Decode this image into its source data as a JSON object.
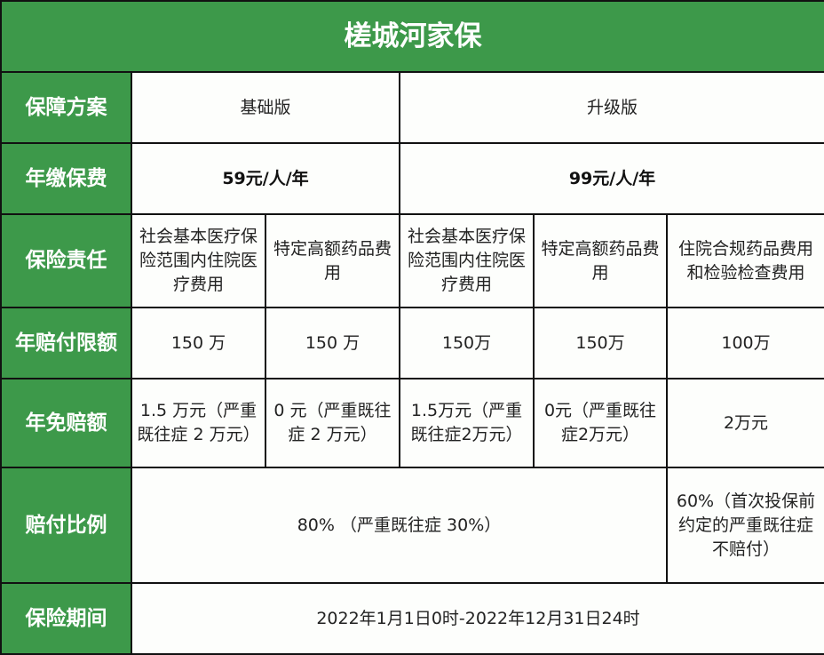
{
  "title": "槎城河家保",
  "colors": {
    "header_green": "#3d994a",
    "border": "#111111"
  },
  "rows": {
    "plan": {
      "label": "保障方案",
      "basic": "基础版",
      "upgrade": "升级版"
    },
    "premium": {
      "label": "年缴保费",
      "basic": "59元/人/年",
      "upgrade": "99元/人/年"
    },
    "coverage": {
      "label": "保险责任",
      "cells": [
        "社会基本医疗保险范围内住院医疗费用",
        "特定高额药品费用",
        "社会基本医疗保险范围内住院医疗费用",
        "特定高额药品费用",
        "住院合规药品费用和检验检查费用"
      ]
    },
    "limit": {
      "label": "年赔付限额",
      "cells": [
        "150 万",
        "150 万",
        "150万",
        "150万",
        "100万"
      ]
    },
    "deductible": {
      "label": "年免赔额",
      "cells": [
        "1.5 万元（严重既往症 2 万元）",
        "0 元（严重既往症 2 万元）",
        "1.5万元（严重既往症2万元）",
        "0元（严重既往症2万元）",
        "2万元"
      ]
    },
    "ratio": {
      "label": "赔付比例",
      "main": "80% （严重既往症 30%）",
      "last": "60%（首次投保前约定的严重既往症不赔付）"
    },
    "period": {
      "label": "保险期间",
      "value": "2022年1月1日0时-2022年12月31日24时"
    }
  }
}
